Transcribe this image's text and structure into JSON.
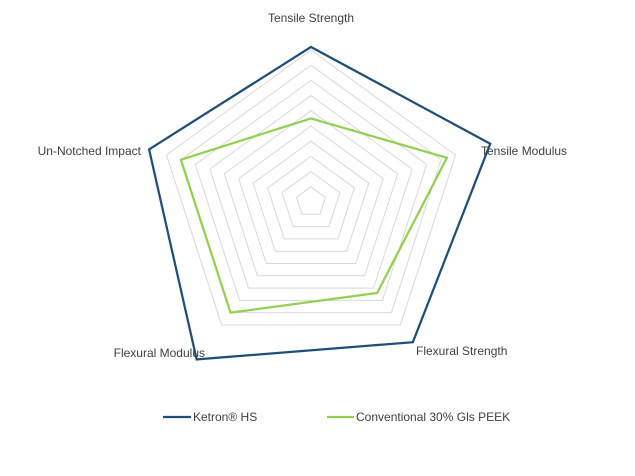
{
  "chart_data": {
    "type": "radar",
    "axes": [
      "Tensile Strength",
      "Tensile Modulus",
      "Flexural Strength",
      "Flexural Modulus",
      "Un-Notched Impact"
    ],
    "rlim": [
      0,
      10
    ],
    "grid": true,
    "grid_levels": 10,
    "legend_position": "bottom",
    "series": [
      {
        "name": "Ketron® HS",
        "color": "#1f4e79",
        "values": [
          10.2,
          12.4,
          11.4,
          12.8,
          11.2
        ]
      },
      {
        "name": "Conventional 30% Gls PEEK",
        "color": "#92d050",
        "values": [
          5.5,
          9.4,
          7.4,
          9.0,
          9.0
        ]
      }
    ]
  }
}
